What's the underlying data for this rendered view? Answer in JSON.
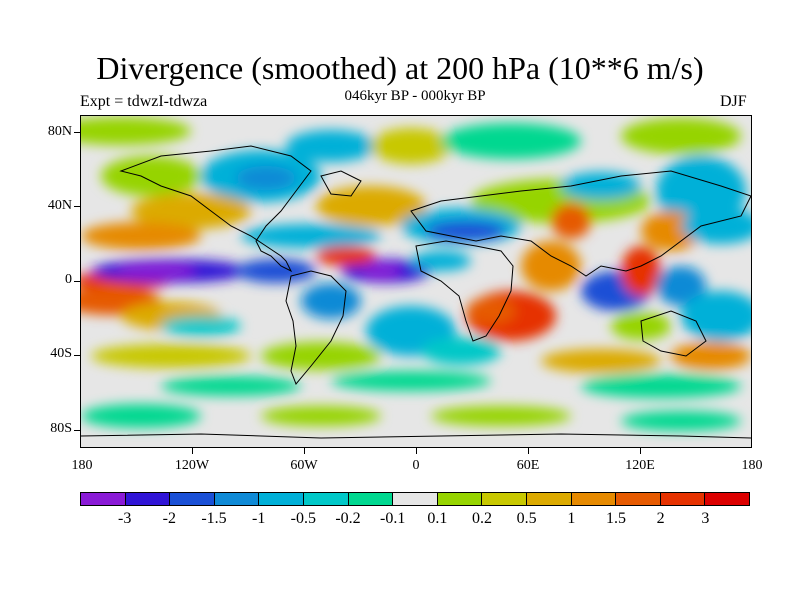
{
  "title": "Divergence (smoothed) at 200 hPa (10**6 m/s)",
  "subtitle": "046kyr BP - 000kyr BP",
  "expt_label": "Expt = tdwzI-tdwza",
  "season": "DJF",
  "lat_labels": [
    "80N",
    "40N",
    "0",
    "40S",
    "80S"
  ],
  "lon_labels": [
    "180",
    "120W",
    "60W",
    "0",
    "60E",
    "120E",
    "180"
  ],
  "colorbar": {
    "colors": [
      "#8a1ad6",
      "#3014d6",
      "#1a50d6",
      "#0f8ad6",
      "#00b0d8",
      "#00c8c8",
      "#00d890",
      "#e6e6e6",
      "#96d400",
      "#c8c800",
      "#dcaa00",
      "#e68a00",
      "#e65a00",
      "#e63200",
      "#dc0000"
    ],
    "labels": [
      "-3",
      "-2",
      "-1.5",
      "-1",
      "-0.5",
      "-0.2",
      "-0.1",
      "0.1",
      "0.2",
      "0.5",
      "1",
      "1.5",
      "2",
      "3"
    ]
  }
}
